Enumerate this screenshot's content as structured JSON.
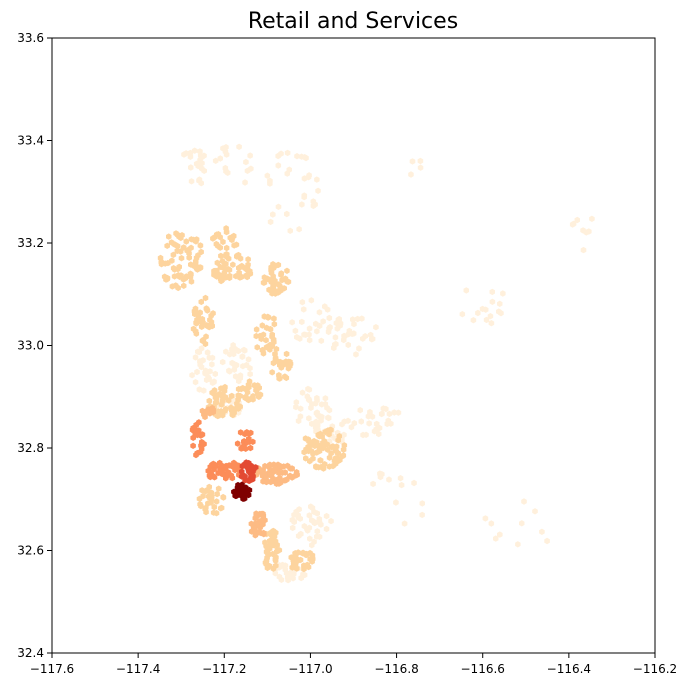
{
  "chart_data": {
    "type": "hexbin",
    "title": "Retail and Services",
    "xlabel": "",
    "ylabel": "",
    "xlim": [
      -117.6,
      -116.2
    ],
    "ylim": [
      32.4,
      33.6
    ],
    "x_ticks": [
      -117.6,
      -117.4,
      -117.2,
      -117.0,
      -116.8,
      -116.6,
      -116.4,
      -116.2
    ],
    "x_tick_labels": [
      "−117.6",
      "−117.4",
      "−117.2",
      "−117.0",
      "−116.8",
      "−116.6",
      "−116.4",
      "−116.2"
    ],
    "y_ticks": [
      32.4,
      32.6,
      32.8,
      33.0,
      33.2,
      33.4,
      33.6
    ],
    "y_tick_labels": [
      "32.4",
      "32.6",
      "32.8",
      "33.0",
      "33.2",
      "33.4",
      "33.6"
    ],
    "grid": false,
    "colormap": "OrRd",
    "colors": [
      "#fff0dc",
      "#fdd49e",
      "#fdbb84",
      "#fc8d59",
      "#e34a33",
      "#7f0000"
    ],
    "clusters": [
      {
        "lon": -117.16,
        "lat": 32.715,
        "level": 5,
        "rx": 0.02,
        "ry": 0.015,
        "n": 30
      },
      {
        "lon": -117.145,
        "lat": 32.755,
        "level": 4,
        "rx": 0.02,
        "ry": 0.02,
        "n": 35
      },
      {
        "lon": -117.2,
        "lat": 32.755,
        "level": 3,
        "rx": 0.04,
        "ry": 0.02,
        "n": 40
      },
      {
        "lon": -117.15,
        "lat": 32.815,
        "level": 3,
        "rx": 0.02,
        "ry": 0.02,
        "n": 20
      },
      {
        "lon": -117.26,
        "lat": 32.82,
        "level": 3,
        "rx": 0.015,
        "ry": 0.04,
        "n": 25
      },
      {
        "lon": -117.24,
        "lat": 32.87,
        "level": 2,
        "rx": 0.02,
        "ry": 0.01,
        "n": 10
      },
      {
        "lon": -117.08,
        "lat": 32.75,
        "level": 2,
        "rx": 0.05,
        "ry": 0.02,
        "n": 60
      },
      {
        "lon": -117.12,
        "lat": 32.65,
        "level": 2,
        "rx": 0.02,
        "ry": 0.025,
        "n": 30
      },
      {
        "lon": -117.09,
        "lat": 32.6,
        "level": 1,
        "rx": 0.02,
        "ry": 0.04,
        "n": 40
      },
      {
        "lon": -117.02,
        "lat": 32.58,
        "level": 1,
        "rx": 0.03,
        "ry": 0.02,
        "n": 30
      },
      {
        "lon": -116.97,
        "lat": 32.8,
        "level": 1,
        "rx": 0.05,
        "ry": 0.04,
        "n": 70
      },
      {
        "lon": -117.23,
        "lat": 32.7,
        "level": 1,
        "rx": 0.03,
        "ry": 0.03,
        "n": 30
      },
      {
        "lon": -117.2,
        "lat": 32.89,
        "level": 1,
        "rx": 0.04,
        "ry": 0.03,
        "n": 50
      },
      {
        "lon": -117.14,
        "lat": 32.91,
        "level": 1,
        "rx": 0.03,
        "ry": 0.02,
        "n": 25
      },
      {
        "lon": -117.07,
        "lat": 32.96,
        "level": 1,
        "rx": 0.025,
        "ry": 0.03,
        "n": 25
      },
      {
        "lon": -117.1,
        "lat": 33.02,
        "level": 1,
        "rx": 0.03,
        "ry": 0.04,
        "n": 30
      },
      {
        "lon": -117.25,
        "lat": 33.05,
        "level": 1,
        "rx": 0.025,
        "ry": 0.05,
        "n": 35
      },
      {
        "lon": -117.3,
        "lat": 33.17,
        "level": 1,
        "rx": 0.05,
        "ry": 0.06,
        "n": 70
      },
      {
        "lon": -117.18,
        "lat": 33.15,
        "level": 1,
        "rx": 0.05,
        "ry": 0.03,
        "n": 50
      },
      {
        "lon": -117.08,
        "lat": 33.13,
        "level": 1,
        "rx": 0.03,
        "ry": 0.03,
        "n": 40
      },
      {
        "lon": -117.2,
        "lat": 33.2,
        "level": 1,
        "rx": 0.03,
        "ry": 0.03,
        "n": 20
      },
      {
        "lon": -117.25,
        "lat": 32.95,
        "level": 0,
        "rx": 0.03,
        "ry": 0.05,
        "n": 30
      },
      {
        "lon": -117.17,
        "lat": 32.97,
        "level": 0,
        "rx": 0.04,
        "ry": 0.04,
        "n": 30
      },
      {
        "lon": -117.0,
        "lat": 32.88,
        "level": 0,
        "rx": 0.04,
        "ry": 0.04,
        "n": 30
      },
      {
        "lon": -116.95,
        "lat": 32.84,
        "level": 0,
        "rx": 0.04,
        "ry": 0.04,
        "n": 30
      },
      {
        "lon": -117.0,
        "lat": 32.65,
        "level": 0,
        "rx": 0.05,
        "ry": 0.04,
        "n": 35
      },
      {
        "lon": -117.05,
        "lat": 32.56,
        "level": 0,
        "rx": 0.04,
        "ry": 0.02,
        "n": 25
      },
      {
        "lon": -117.2,
        "lat": 32.88,
        "level": 0,
        "rx": 0.04,
        "ry": 0.025,
        "n": 35
      },
      {
        "lon": -117.27,
        "lat": 33.35,
        "level": 0,
        "rx": 0.03,
        "ry": 0.05,
        "n": 20
      },
      {
        "lon": -117.18,
        "lat": 33.35,
        "level": 0,
        "rx": 0.05,
        "ry": 0.04,
        "n": 15
      },
      {
        "lon": -117.05,
        "lat": 33.3,
        "level": 0,
        "rx": 0.08,
        "ry": 0.08,
        "n": 30
      },
      {
        "lon": -117.0,
        "lat": 33.05,
        "level": 0,
        "rx": 0.05,
        "ry": 0.05,
        "n": 25
      },
      {
        "lon": -116.9,
        "lat": 33.02,
        "level": 0,
        "rx": 0.06,
        "ry": 0.04,
        "n": 30
      },
      {
        "lon": -116.85,
        "lat": 32.85,
        "level": 0,
        "rx": 0.08,
        "ry": 0.03,
        "n": 25
      },
      {
        "lon": -116.6,
        "lat": 33.08,
        "level": 0,
        "rx": 0.06,
        "ry": 0.04,
        "n": 15
      },
      {
        "lon": -116.35,
        "lat": 33.22,
        "level": 0,
        "rx": 0.05,
        "ry": 0.04,
        "n": 8
      },
      {
        "lon": -116.5,
        "lat": 32.65,
        "level": 0,
        "rx": 0.1,
        "ry": 0.05,
        "n": 10
      },
      {
        "lon": -116.8,
        "lat": 32.7,
        "level": 0,
        "rx": 0.08,
        "ry": 0.06,
        "n": 12
      },
      {
        "lon": -116.75,
        "lat": 33.35,
        "level": 0,
        "rx": 0.03,
        "ry": 0.02,
        "n": 4
      }
    ]
  }
}
